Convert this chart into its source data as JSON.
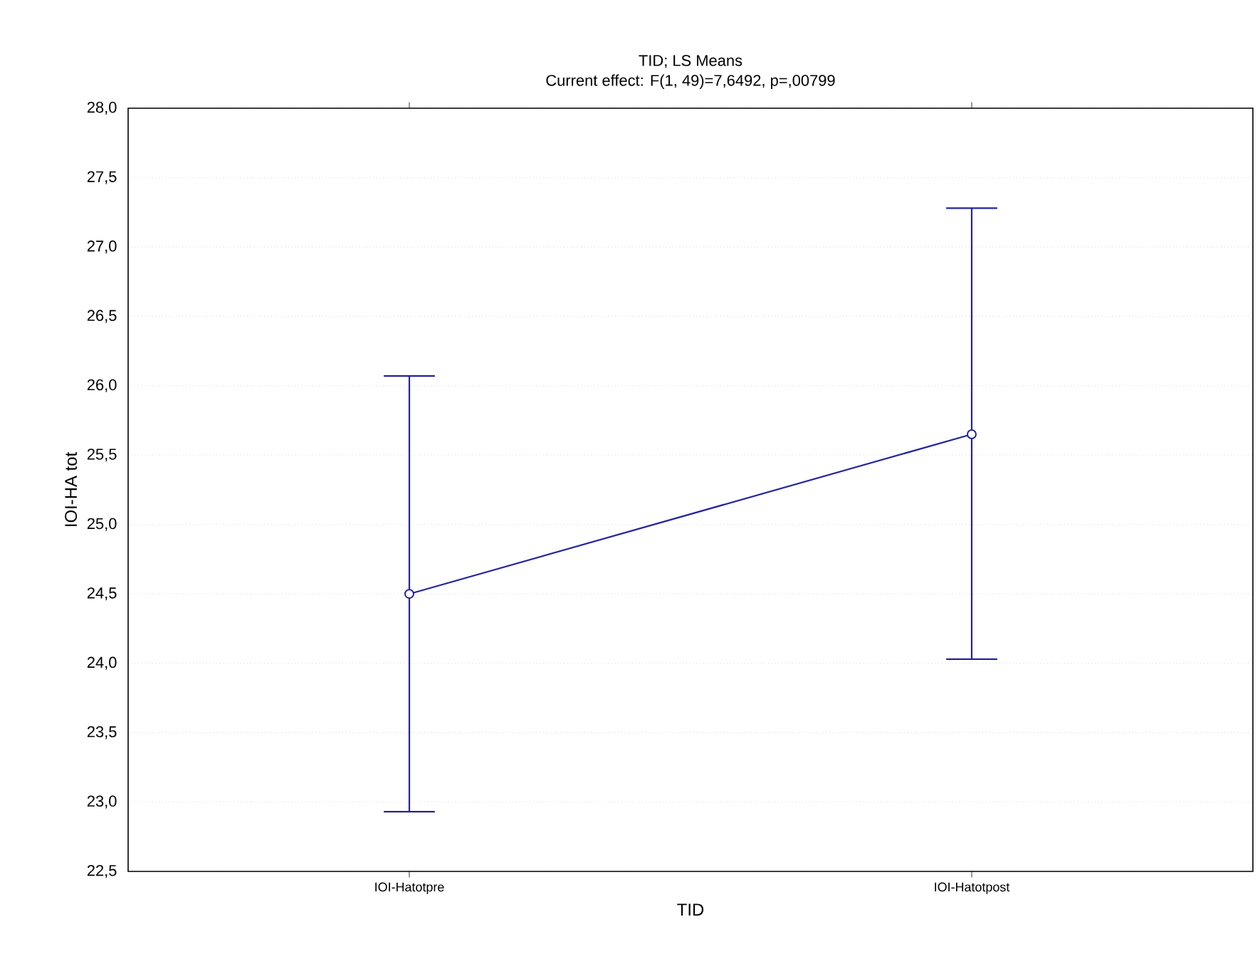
{
  "chart_data": {
    "type": "line",
    "title": "TID; LS Means",
    "subtitle": "Current effect: F(1, 49)=7,6492, p=,00799",
    "xlabel": "TID",
    "ylabel": "IOI-HA tot",
    "categories": [
      "IOI-Hatotpre",
      "IOI-Hatotpost"
    ],
    "series": [
      {
        "color": "#2323a0",
        "values": [
          24.5,
          25.65
        ],
        "errors": [
          [
            22.93,
            26.07
          ],
          [
            24.03,
            27.28
          ]
        ]
      }
    ],
    "ylim": [
      22.5,
      28
    ],
    "yticks": [
      {
        "value": 22.5,
        "label": "22,5"
      },
      {
        "value": 23,
        "label": "23,0"
      },
      {
        "value": 23.5,
        "label": "23,5"
      },
      {
        "value": 24,
        "label": "24,0"
      },
      {
        "value": 24.5,
        "label": "24,5"
      },
      {
        "value": 25,
        "label": "25,0"
      },
      {
        "value": 25.5,
        "label": "25,5"
      },
      {
        "value": 26,
        "label": "26,0"
      },
      {
        "value": 26.5,
        "label": "26,5"
      },
      {
        "value": 27,
        "label": "27,0"
      },
      {
        "value": 27.5,
        "label": "27,5"
      },
      {
        "value": 28,
        "label": "28,0"
      }
    ],
    "grid": "y",
    "marker": "circle",
    "line_style": "solid"
  }
}
